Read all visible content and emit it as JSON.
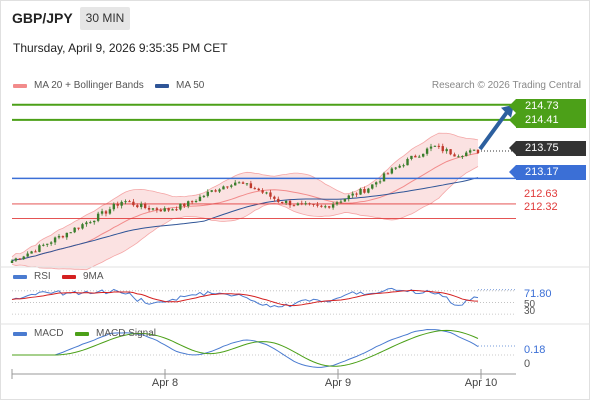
{
  "header": {
    "symbol": "GBP/JPY",
    "timeframe": "30 MIN",
    "datetime": "Thursday, April 9, 2026 9:35:35 PM CET"
  },
  "legend_main": [
    {
      "label": "MA 20 + Bollinger Bands",
      "color": "#f28b8b"
    },
    {
      "label": "MA 50",
      "color": "#2f5597"
    }
  ],
  "credit": "Research © 2026 Trading Central",
  "colors": {
    "resistance": "#4ca018",
    "pivot": "#3b6fd6",
    "support": "#e03b3b",
    "price": "#333333",
    "arrow": "#2c5f9e",
    "candle_up": "#3a7d2c",
    "candle_down": "#c0392b"
  },
  "levels": {
    "resistance_2": "214.73",
    "resistance_1": "214.41",
    "last_price": "213.75",
    "pivot": "213.17",
    "support_1": "212.63",
    "support_2": "212.32"
  },
  "rsi": {
    "legend": [
      {
        "label": "RSI",
        "color": "#4a7bd0"
      },
      {
        "label": "9MA",
        "color": "#d42020"
      }
    ],
    "value": "71.80",
    "label_50": "50",
    "label_30": "30"
  },
  "macd": {
    "legend": [
      {
        "label": "MACD",
        "color": "#4a7bd0"
      },
      {
        "label": "MACD Signal",
        "color": "#4ca018"
      }
    ],
    "value": "0.18",
    "label_0": "0"
  },
  "x_axis": {
    "labels": [
      "Apr 8",
      "Apr 9",
      "Apr 10"
    ]
  },
  "chart_data": [
    {
      "type": "candlestick",
      "ylim": [
        211.4,
        215.0
      ],
      "levels": [
        214.73,
        214.41,
        213.75,
        213.17,
        212.63,
        212.32
      ],
      "x_ticks": [
        "Apr 8",
        "Apr 9",
        "Apr 10"
      ],
      "price_path": [
        211.43,
        211.65,
        211.9,
        212.15,
        212.4,
        212.7,
        212.55,
        212.5,
        212.65,
        212.9,
        213.1,
        212.95,
        212.7,
        212.6,
        212.55,
        212.75,
        212.95,
        213.3,
        213.6,
        213.85,
        213.68,
        213.75
      ],
      "series": [
        {
          "name": "MA 20 + Bollinger Bands"
        },
        {
          "name": "MA 50"
        }
      ]
    },
    {
      "type": "line",
      "series": [
        {
          "name": "RSI"
        },
        {
          "name": "9MA"
        }
      ],
      "reference_lines": [
        50,
        30
      ],
      "last_value": 71.8
    },
    {
      "type": "line",
      "series": [
        {
          "name": "MACD"
        },
        {
          "name": "MACD Signal"
        }
      ],
      "reference_lines": [
        0
      ],
      "last_value": 0.18
    }
  ]
}
